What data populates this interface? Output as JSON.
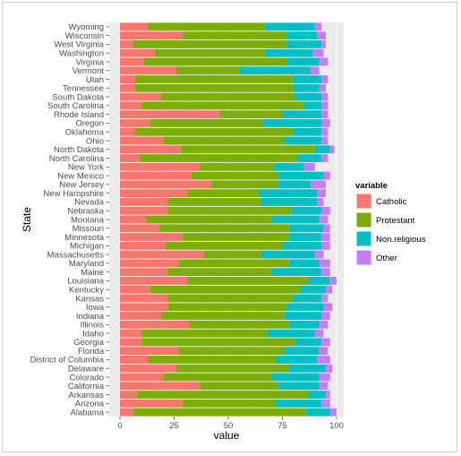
{
  "chart_data": {
    "type": "bar",
    "orientation": "horizontal",
    "stacked": true,
    "xlabel": "value",
    "ylabel": "State",
    "xlim": [
      0,
      100
    ],
    "x_ticks": [
      0,
      25,
      50,
      75,
      100
    ],
    "grid": true,
    "legend_title": "variable",
    "legend_position": "right",
    "categories": [
      "Alabama",
      "Arizona",
      "Arkansas",
      "California",
      "Colorado",
      "Delaware",
      "District of Columbia",
      "Florida",
      "Georgia",
      "Idaho",
      "Illinois",
      "Indiana",
      "Iowa",
      "Kansas",
      "Kentucky",
      "Louisiana",
      "Maine",
      "Maryland",
      "Massachusetts",
      "Michigan",
      "Minnesota",
      "Missouri",
      "Montana",
      "Nebraska",
      "Nevada",
      "New Hampshire",
      "New Jersey",
      "New Mexico",
      "New York",
      "North Carolina",
      "North Dakota",
      "Ohio",
      "Oklahoma",
      "Oregon",
      "Rhode Island",
      "South Carolina",
      "South Dakota",
      "Tennessee",
      "Utah",
      "Vermont",
      "Virginia",
      "Washington",
      "West Virginia",
      "Wisconsin",
      "Wyoming"
    ],
    "series": [
      {
        "name": "Catholic",
        "color": "#F8766D",
        "values": [
          6,
          29,
          8,
          37,
          20,
          26,
          13,
          27,
          10,
          10,
          32,
          19,
          22,
          22,
          14,
          31,
          22,
          27,
          39,
          21,
          29,
          18,
          12,
          22,
          22,
          31,
          42,
          33,
          37,
          9,
          28,
          20,
          7,
          14,
          46,
          10,
          19,
          7,
          7,
          26,
          11,
          16,
          6,
          29,
          13
        ]
      },
      {
        "name": "Protestant",
        "color": "#7CAE00",
        "values": [
          80,
          43,
          79,
          36,
          50,
          52,
          59,
          49,
          71,
          58,
          46,
          57,
          55,
          58,
          69,
          56,
          48,
          51,
          26,
          54,
          49,
          60,
          58,
          57,
          43,
          33,
          31,
          40,
          34,
          73,
          62,
          56,
          73,
          52,
          29,
          75,
          62,
          73,
          73,
          29,
          66,
          51,
          71,
          48,
          54
        ]
      },
      {
        "name": "Non.religious",
        "color": "#00BFC4",
        "values": [
          11,
          21,
          8,
          19,
          22,
          17,
          19,
          16,
          12,
          22,
          14,
          17,
          17,
          13,
          12,
          10,
          23,
          14,
          25,
          18,
          15,
          16,
          22,
          14,
          26,
          27,
          15,
          21,
          14,
          11,
          7,
          17,
          13,
          27,
          18,
          8,
          12,
          12,
          13,
          33,
          15,
          22,
          16,
          14,
          23
        ]
      },
      {
        "name": "Other",
        "color": "#C77CFF",
        "values": [
          3,
          4,
          2,
          4,
          5,
          3,
          6,
          4,
          4,
          4,
          4,
          4,
          4,
          3,
          3,
          3,
          4,
          5,
          4,
          4,
          4,
          3,
          4,
          4,
          3,
          4,
          7,
          3,
          5,
          3,
          2,
          3,
          3,
          4,
          3,
          3,
          3,
          3,
          3,
          4,
          4,
          5,
          2,
          4,
          3
        ]
      }
    ]
  }
}
